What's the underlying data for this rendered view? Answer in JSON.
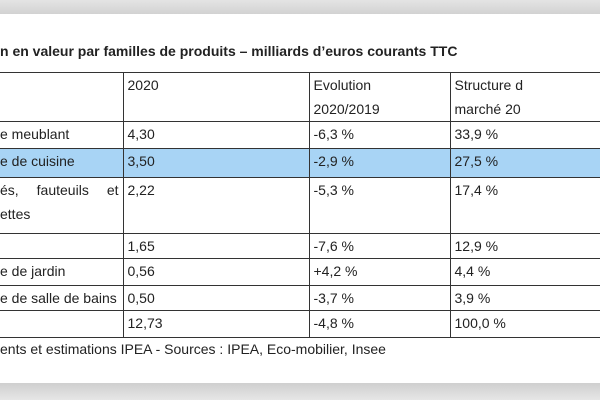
{
  "title": "n en valeur par familles de produits – milliards d’euros courants TTC",
  "table": {
    "headers": [
      [
        "",
        ""
      ],
      [
        "2020",
        ""
      ],
      [
        "Evolution",
        "2020/2019"
      ],
      [
        "Structure d",
        "marché 20"
      ]
    ],
    "rows": [
      {
        "label": "e meublant",
        "value": "4,30",
        "evolution": "-6,3 %",
        "structure": "33,9 %"
      },
      {
        "label": "e de cuisine",
        "value": "3,50",
        "evolution": "-2,9 %",
        "structure": "27,5 %"
      },
      {
        "label_words": [
          "és,",
          "fauteuils",
          "et"
        ],
        "label_line2": "ettes",
        "value": "2,22",
        "evolution": "-5,3 %",
        "structure": "17,4 %"
      },
      {
        "label": "",
        "value": "1,65",
        "evolution": "-7,6 %",
        "structure": "12,9 %"
      },
      {
        "label": "e de jardin",
        "value": "0,56",
        "evolution": "+4,2 %",
        "structure": "4,4 %"
      },
      {
        "label": "e de salle de bains",
        "value": "0,50",
        "evolution": "-3,7 %",
        "structure": "3,9 %"
      },
      {
        "label": "",
        "value": "12,73",
        "evolution": "-4,8 %",
        "structure": "100,0 %"
      }
    ],
    "highlight_color": "#a8d4f5"
  },
  "footer": "ents et estimations IPEA - Sources : IPEA, Eco-mobilier, Insee"
}
